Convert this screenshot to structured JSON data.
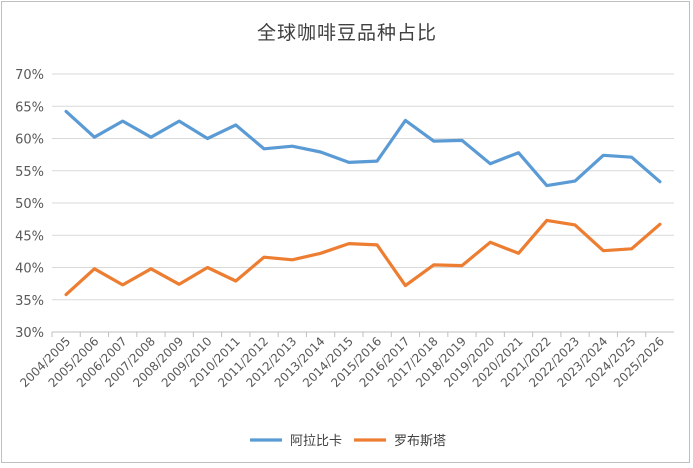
{
  "chart_data": {
    "type": "line",
    "title": "全球咖啡豆品种占比",
    "categories": [
      "2004/2005",
      "2005/2006",
      "2006/2007",
      "2007/2008",
      "2008/2009",
      "2009/2010",
      "2010/2011",
      "2011/2012",
      "2012/2013",
      "2013/2014",
      "2014/2015",
      "2015/2016",
      "2016/2017",
      "2017/2018",
      "2018/2019",
      "2019/2020",
      "2020/2021",
      "2021/2022",
      "2022/2023",
      "2023/2024",
      "2024/2025",
      "2025/2026"
    ],
    "series": [
      {
        "name": "阿拉比卡",
        "color": "#5b9bd5",
        "values": [
          64.2,
          60.2,
          62.7,
          60.2,
          62.7,
          60.0,
          62.1,
          58.4,
          58.8,
          57.9,
          56.3,
          56.5,
          62.8,
          59.6,
          59.7,
          56.1,
          57.8,
          52.7,
          53.4,
          57.4,
          57.1,
          53.3
        ]
      },
      {
        "name": "罗布斯塔",
        "color": "#ed7d31",
        "values": [
          35.8,
          39.8,
          37.3,
          39.8,
          37.4,
          40.0,
          37.9,
          41.6,
          41.2,
          42.2,
          43.7,
          43.5,
          37.2,
          40.4,
          40.3,
          43.9,
          42.2,
          47.3,
          46.6,
          42.6,
          42.9,
          46.7
        ]
      }
    ],
    "yticks": [
      "30%",
      "35%",
      "40%",
      "45%",
      "50%",
      "55%",
      "60%",
      "65%",
      "70%"
    ],
    "ylim": [
      30,
      70
    ],
    "grid": true,
    "legend": "bottom"
  }
}
